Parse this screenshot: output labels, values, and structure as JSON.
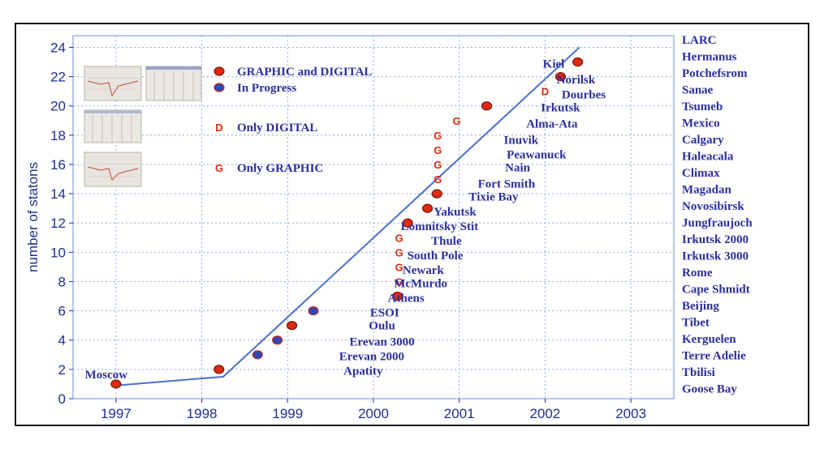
{
  "chart_data": {
    "type": "scatter",
    "title": "",
    "xlabel": "",
    "ylabel": "number of statons",
    "xlim": [
      1996.5,
      2003.5
    ],
    "ylim": [
      0,
      24.8
    ],
    "x_ticks": [
      "1997",
      "1998",
      "1999",
      "2000",
      "2001",
      "2002",
      "2003"
    ],
    "y_ticks": [
      "0",
      "2",
      "4",
      "6",
      "8",
      "10",
      "12",
      "14",
      "16",
      "18",
      "20",
      "22",
      "24"
    ],
    "grid": true,
    "colors": {
      "axis_text": "#1e2f8f",
      "line": "#4a6fd0",
      "grid": "#8aaee0",
      "red_dot": "#dd2a10",
      "blue_dot": "#2f46b8",
      "label_text": "#2b2f9e"
    },
    "trend_line": [
      [
        1997,
        0.9
      ],
      [
        1998.25,
        1.5
      ],
      [
        2002.4,
        24
      ]
    ],
    "legend": [
      {
        "symbol": "red-dot",
        "label": "GRAPHIC and DIGITAL"
      },
      {
        "symbol": "blue-dot",
        "label": "In Progress"
      },
      {
        "symbol": "D",
        "label": "Only DIGITAL"
      },
      {
        "symbol": "G",
        "label": "Only GRAPHIC"
      }
    ],
    "points": [
      {
        "x": 1997.0,
        "y": 1,
        "marker": "red-dot",
        "label": "Moscow"
      },
      {
        "x": 1998.2,
        "y": 2,
        "marker": "red-dot",
        "label": ""
      },
      {
        "x": 1998.65,
        "y": 3,
        "marker": "blue-dot",
        "label": ""
      },
      {
        "x": 1998.88,
        "y": 4,
        "marker": "blue-dot",
        "label": ""
      },
      {
        "x": 1999.05,
        "y": 5,
        "marker": "red-dot",
        "label": ""
      },
      {
        "x": 1999.3,
        "y": 6,
        "marker": "blue-dot",
        "label": ""
      },
      {
        "x": 2000.28,
        "y": 7,
        "marker": "red-dot",
        "label": ""
      },
      {
        "x": 2000.3,
        "y": 8,
        "marker": "G",
        "label": ""
      },
      {
        "x": 2000.3,
        "y": 9,
        "marker": "G",
        "label": ""
      },
      {
        "x": 2000.3,
        "y": 10,
        "marker": "G",
        "label": ""
      },
      {
        "x": 2000.3,
        "y": 11,
        "marker": "G",
        "label": ""
      },
      {
        "x": 2000.4,
        "y": 12,
        "marker": "red-dot",
        "label": ""
      },
      {
        "x": 2000.63,
        "y": 13,
        "marker": "red-dot",
        "label": ""
      },
      {
        "x": 2000.74,
        "y": 14,
        "marker": "red-dot",
        "label": ""
      },
      {
        "x": 2000.75,
        "y": 15,
        "marker": "G",
        "label": ""
      },
      {
        "x": 2000.75,
        "y": 16,
        "marker": "G",
        "label": ""
      },
      {
        "x": 2000.75,
        "y": 17,
        "marker": "G",
        "label": ""
      },
      {
        "x": 2000.75,
        "y": 18,
        "marker": "G",
        "label": ""
      },
      {
        "x": 2000.97,
        "y": 19,
        "marker": "G",
        "label": ""
      },
      {
        "x": 2001.32,
        "y": 20,
        "marker": "red-dot",
        "label": ""
      },
      {
        "x": 2002.0,
        "y": 21,
        "marker": "D",
        "label": ""
      },
      {
        "x": 2002.18,
        "y": 22,
        "marker": "red-dot",
        "label": ""
      },
      {
        "x": 2002.38,
        "y": 23,
        "marker": "red-dot",
        "label": ""
      }
    ],
    "station_labels": [
      {
        "text": "Kiel",
        "x": 2002.1,
        "y": 22.9
      },
      {
        "text": "Norilsk",
        "x": 2002.36,
        "y": 21.8
      },
      {
        "text": "Dourbes",
        "x": 2002.45,
        "y": 20.8
      },
      {
        "text": "Irkutsk",
        "x": 2002.18,
        "y": 19.9
      },
      {
        "text": "Alma-Ata",
        "x": 2002.08,
        "y": 18.8
      },
      {
        "text": "Inuvik",
        "x": 2001.72,
        "y": 17.7
      },
      {
        "text": "Peawanuck",
        "x": 2001.9,
        "y": 16.7
      },
      {
        "text": "Nain",
        "x": 2001.68,
        "y": 15.8
      },
      {
        "text": "Fort Smith",
        "x": 2001.55,
        "y": 14.7
      },
      {
        "text": "Tixie Bay",
        "x": 2001.4,
        "y": 13.8
      },
      {
        "text": "Yakutsk",
        "x": 2000.95,
        "y": 12.8
      },
      {
        "text": "Lomnitsky Stit",
        "x": 2000.77,
        "y": 11.8
      },
      {
        "text": "Thule",
        "x": 2000.85,
        "y": 10.8
      },
      {
        "text": "South Pole",
        "x": 2000.72,
        "y": 9.8
      },
      {
        "text": "Newark",
        "x": 2000.58,
        "y": 8.8
      },
      {
        "text": "McMurdo",
        "x": 2000.55,
        "y": 7.9
      },
      {
        "text": "Athens",
        "x": 2000.38,
        "y": 6.9
      },
      {
        "text": "ESOI",
        "x": 2000.13,
        "y": 5.9
      },
      {
        "text": "Oulu",
        "x": 2000.1,
        "y": 5.0
      },
      {
        "text": "Erevan 3000",
        "x": 2000.1,
        "y": 3.9
      },
      {
        "text": "Erevan 2000",
        "x": 1999.98,
        "y": 2.9
      },
      {
        "text": "Apatity",
        "x": 1999.88,
        "y": 1.9
      }
    ],
    "right_station_list": [
      "LARC",
      "Hermanus",
      "Potchefsrom",
      "Sanae",
      "Tsumeb",
      "Mexico",
      "Calgary",
      "Haleacala",
      "Climax",
      "Magadan",
      "Novosibirsk",
      "Jungfraujoch",
      "Irkutsk 2000",
      "Irkutsk 3000",
      "Rome",
      "Cape Shmidt",
      "Beijing",
      "Tibet",
      "Kerguelen",
      "Terre Adelie",
      "Tbilisi",
      "Goose Bay"
    ]
  }
}
